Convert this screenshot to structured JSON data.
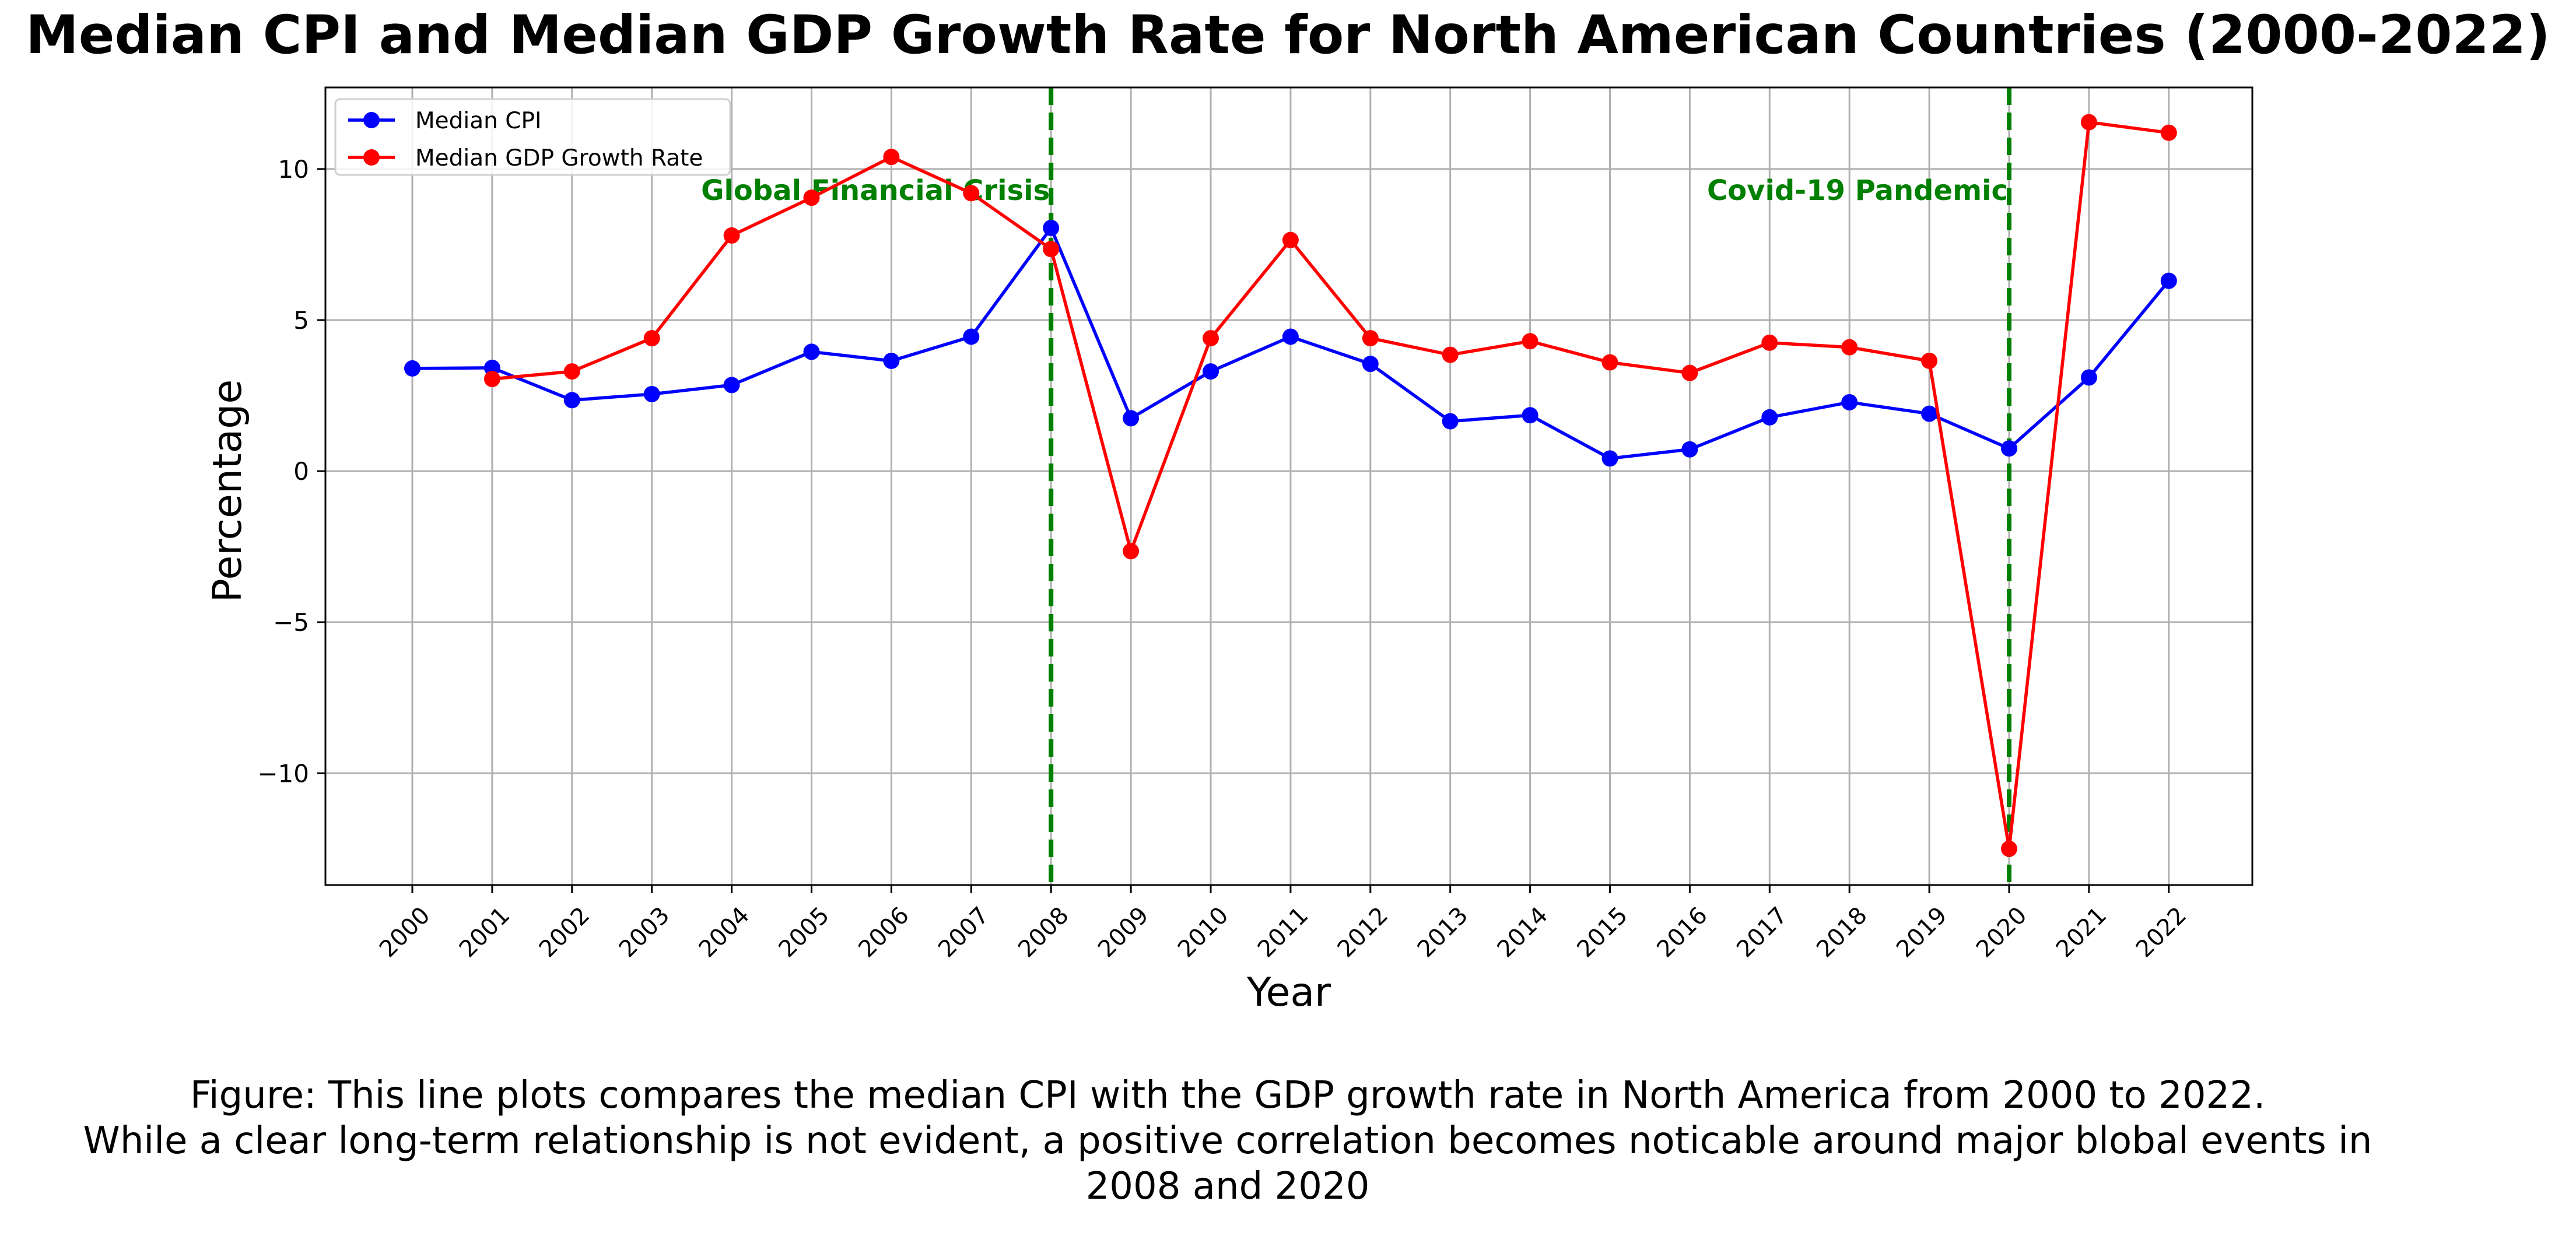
{
  "title": "Median CPI and Median GDP Growth Rate for North American Countries (2000-2022)",
  "caption": {
    "line1": "Figure: This line plots compares the median CPI with the GDP growth rate in North America from 2000 to 2022.",
    "line2": "While a clear long-term relationship is not evident, a positive correlation becomes noticable around major blobal events in",
    "line3": "2008 and 2020"
  },
  "colors": {
    "cpi": "#0000ff",
    "gdp": "#ff0000",
    "event_line": "#008000",
    "grid": "#b0b0b0"
  },
  "chart_data": {
    "type": "line",
    "title": "Median CPI and Median GDP Growth Rate for North American Countries (2000-2022)",
    "xlabel": "Year",
    "ylabel": "Percentage",
    "ylim": [
      -13.7,
      12.7
    ],
    "yticks": [
      -10,
      -5,
      0,
      5,
      10
    ],
    "ytick_labels": [
      "−10",
      "−5",
      "0",
      "5",
      "10"
    ],
    "grid": true,
    "legend": "top-left",
    "categories": [
      "2000",
      "2001",
      "2002",
      "2003",
      "2004",
      "2005",
      "2006",
      "2007",
      "2008",
      "2009",
      "2010",
      "2011",
      "2012",
      "2013",
      "2014",
      "2015",
      "2016",
      "2017",
      "2018",
      "2019",
      "2020",
      "2021",
      "2022"
    ],
    "series": [
      {
        "name": "Median CPI",
        "color": "#0000ff",
        "values": [
          3.4,
          3.42,
          2.35,
          2.55,
          2.85,
          3.95,
          3.65,
          4.45,
          8.05,
          1.75,
          3.3,
          4.45,
          3.55,
          1.65,
          1.85,
          0.42,
          0.72,
          1.78,
          2.28,
          1.9,
          0.75,
          3.1,
          6.3
        ]
      },
      {
        "name": "Median GDP Growth Rate",
        "color": "#ff0000",
        "values": [
          null,
          3.05,
          3.3,
          4.4,
          7.8,
          9.05,
          10.4,
          9.2,
          7.35,
          -2.65,
          4.4,
          7.65,
          4.4,
          3.85,
          4.3,
          3.6,
          3.25,
          4.25,
          4.1,
          3.65,
          -12.5,
          11.55,
          11.2
        ]
      }
    ],
    "annotations": [
      {
        "x": "2008",
        "label": "Global Financial Crisis"
      },
      {
        "x": "2020",
        "label": "Covid-19 Pandemic"
      }
    ]
  }
}
